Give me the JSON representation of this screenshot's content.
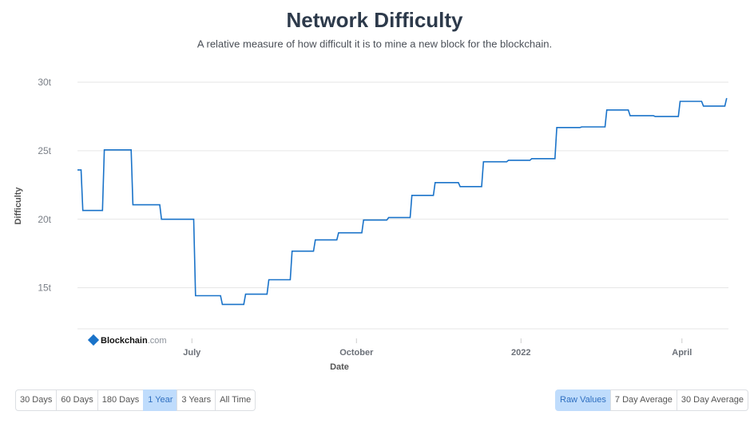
{
  "chart_data": {
    "type": "line",
    "title": "Network Difficulty",
    "subtitle": "A relative measure of how difficult it is to mine a new block for the blockchain.",
    "x_label": "Date",
    "y_label": "Difficulty",
    "color": "#1a73c9",
    "grid": true,
    "x": [
      0,
      2,
      3,
      14,
      15,
      30,
      31,
      46,
      47,
      65,
      66,
      80,
      81,
      93,
      94,
      106,
      107,
      119,
      120,
      132,
      133,
      145,
      146,
      159,
      160,
      173,
      174,
      186,
      187,
      199,
      200,
      213,
      214,
      226,
      227,
      240,
      241,
      253,
      254,
      267,
      268,
      281,
      282,
      295,
      296,
      308,
      309,
      322,
      323,
      336,
      337,
      349,
      350,
      362,
      363
    ],
    "values": [
      23.6,
      23.6,
      20.64,
      20.64,
      25.06,
      25.06,
      21.05,
      21.05,
      20.0,
      20.0,
      14.42,
      14.42,
      13.78,
      13.78,
      14.53,
      14.53,
      15.58,
      15.58,
      17.67,
      17.67,
      18.49,
      18.49,
      19.01,
      19.01,
      19.94,
      19.94,
      20.12,
      20.12,
      21.74,
      21.74,
      22.67,
      22.67,
      22.38,
      22.38,
      24.19,
      24.19,
      24.3,
      24.3,
      24.42,
      24.42,
      26.69,
      26.69,
      26.74,
      26.74,
      27.97,
      27.97,
      27.56,
      27.56,
      27.5,
      27.5,
      28.6,
      28.6,
      28.26,
      28.26,
      28.84
    ],
    "xlim": [
      0,
      364
    ],
    "xticks": [
      {
        "value": 64,
        "label": "July"
      },
      {
        "value": 156,
        "label": "October"
      },
      {
        "value": 248,
        "label": "2022"
      },
      {
        "value": 338,
        "label": "April"
      }
    ],
    "ylim": [
      12,
      30
    ],
    "yticks": [
      {
        "value": 15,
        "label": "15t"
      },
      {
        "value": 20,
        "label": "20t"
      },
      {
        "value": 25,
        "label": "25t"
      },
      {
        "value": 30,
        "label": "30t"
      }
    ],
    "watermark": {
      "name": "Blockchain",
      "suffix": ".com"
    }
  },
  "controls": {
    "periods": [
      "30 Days",
      "60 Days",
      "180 Days",
      "1 Year",
      "3 Years",
      "All Time"
    ],
    "selected_period": "1 Year",
    "averages": [
      "Raw Values",
      "7 Day Average",
      "30 Day Average"
    ],
    "selected_average": "Raw Values"
  }
}
